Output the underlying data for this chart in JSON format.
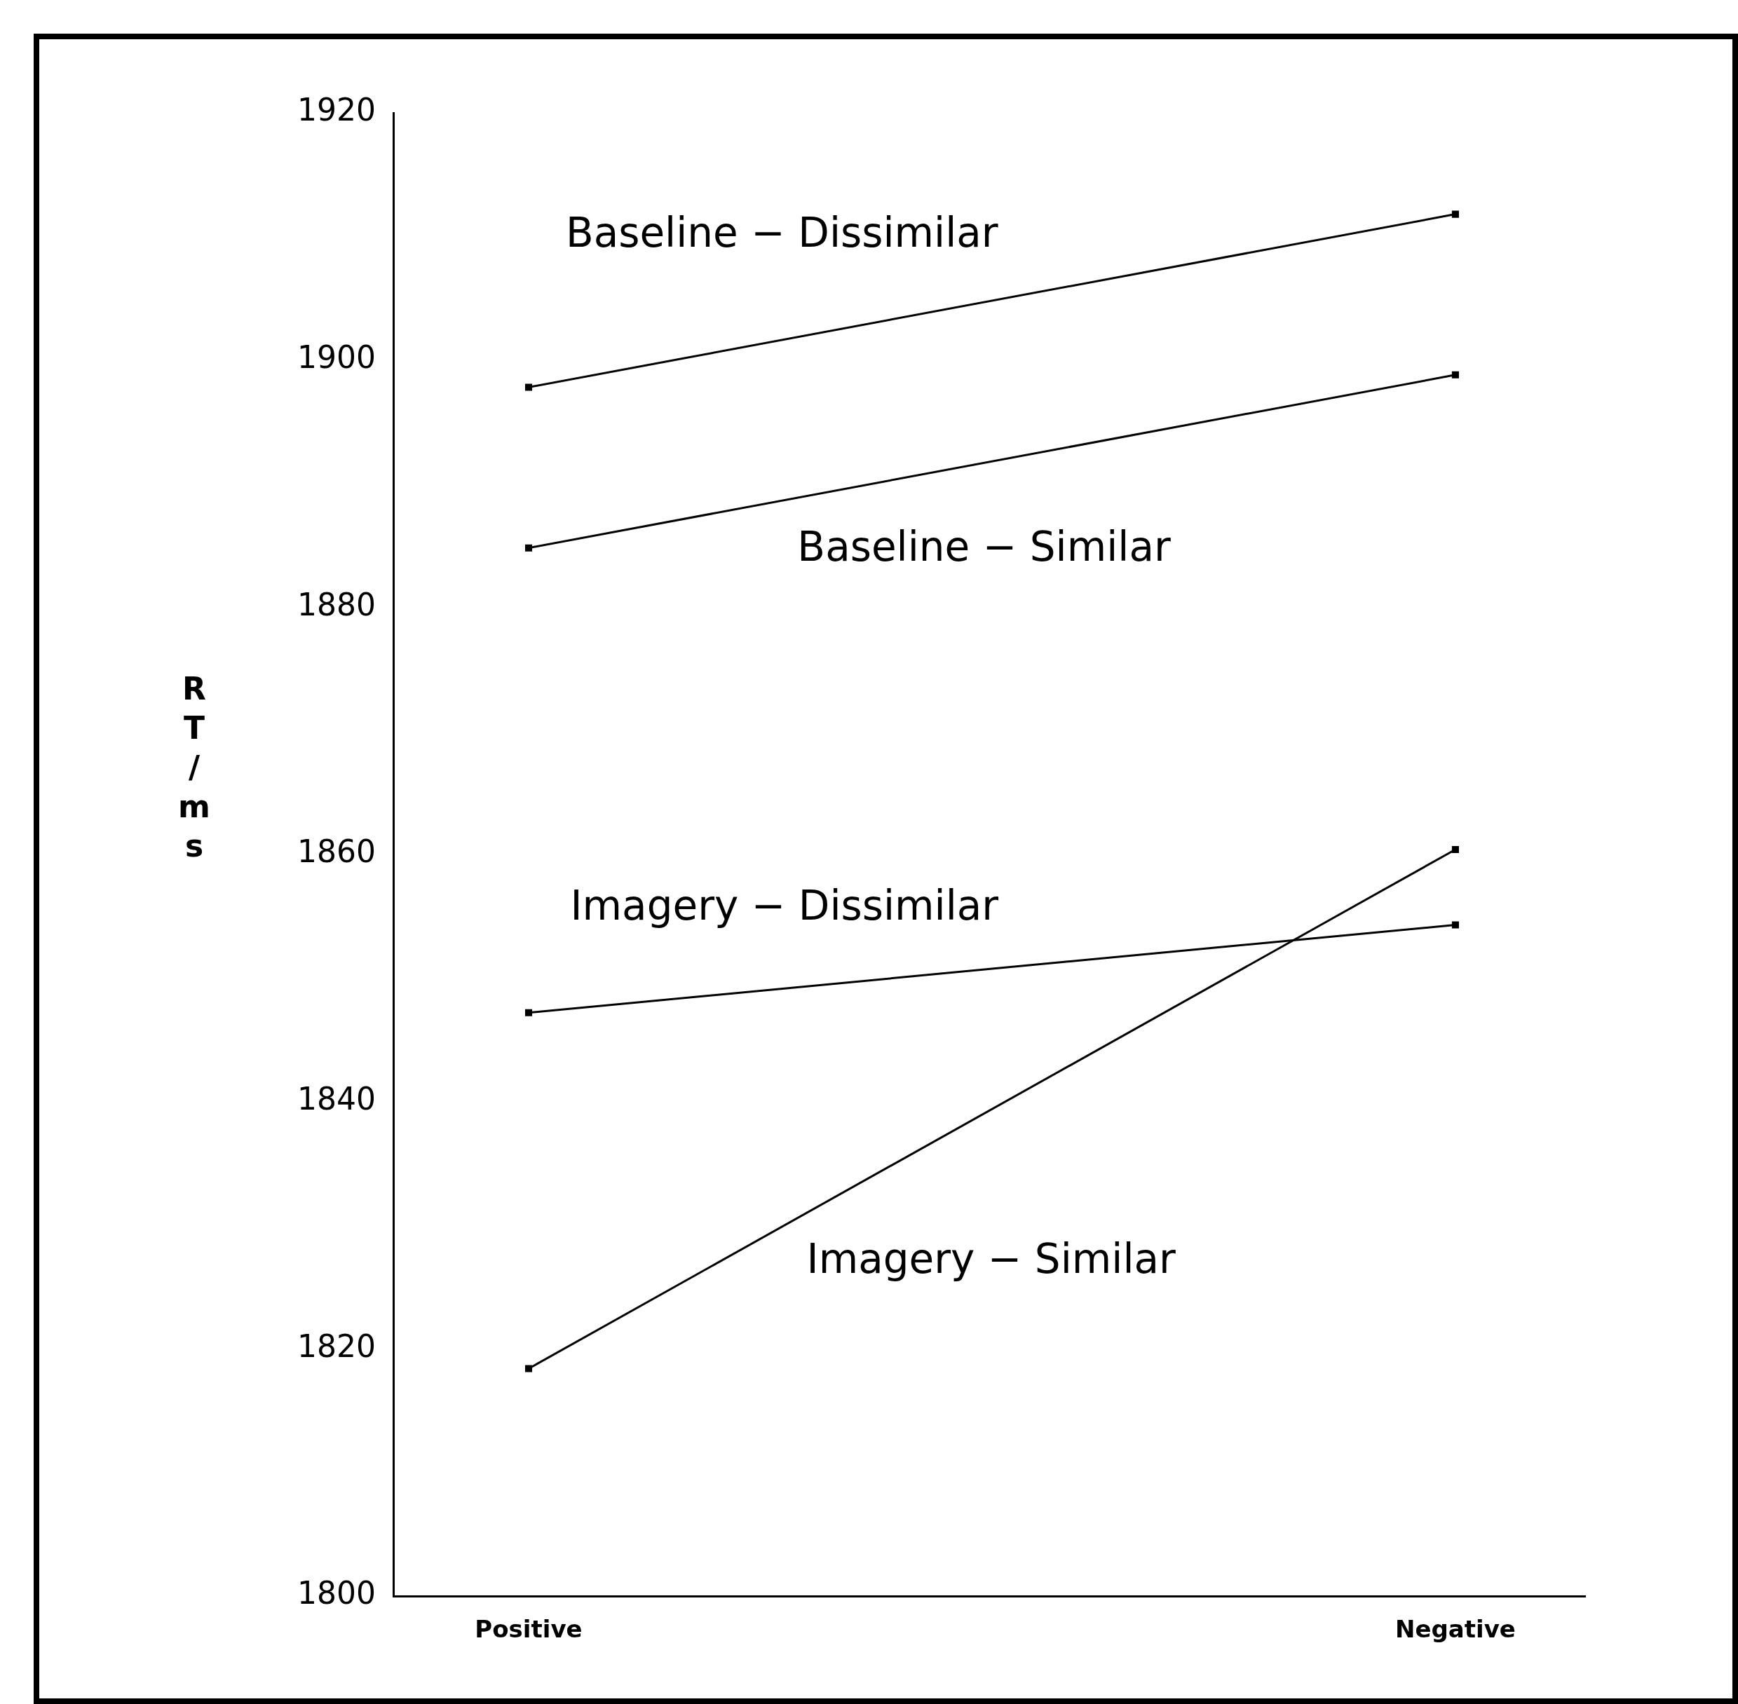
{
  "chart_data": {
    "type": "line",
    "ylabel": "RT/ms",
    "categories": [
      "Positive",
      "Negative"
    ],
    "ylim": [
      1800,
      1920
    ],
    "yticks": [
      1800,
      1820,
      1840,
      1860,
      1880,
      1900,
      1920
    ],
    "marker": "square",
    "series": [
      {
        "name": "Baseline − Dissimilar",
        "color": "#000000",
        "values": [
          1897.8,
          1911.8
        ]
      },
      {
        "name": "Baseline − Similar",
        "color": "#000000",
        "values": [
          1884.8,
          1898.8
        ]
      },
      {
        "name": "Imagery − Dissimilar",
        "color": "#000000",
        "values": [
          1847.2,
          1854.3
        ]
      },
      {
        "name": "Imagery − Similar",
        "color": "#000000",
        "values": [
          1818.4,
          1860.4
        ]
      }
    ]
  }
}
